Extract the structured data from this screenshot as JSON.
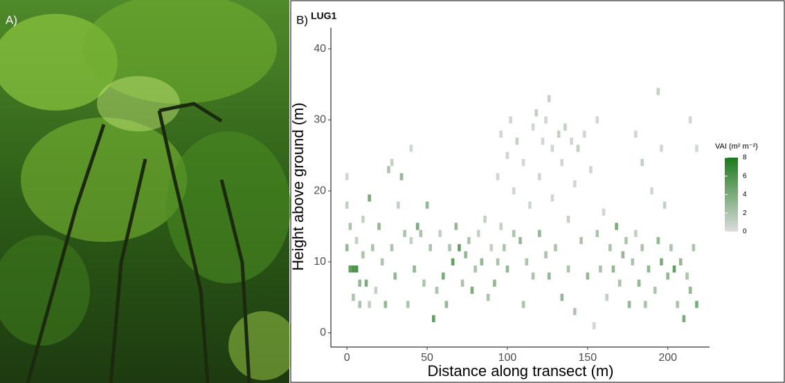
{
  "panel_labels": {
    "photo": "A)",
    "chart": "B)"
  },
  "chart_data": {
    "type": "heatmap",
    "title": "LUG1",
    "x_label": "Distance along transect (m)",
    "y_label": "Height above ground (m)",
    "xlim": [
      -10,
      226
    ],
    "ylim": [
      -2,
      43
    ],
    "xticks": [
      0,
      50,
      100,
      150,
      200
    ],
    "yticks": [
      0,
      10,
      20,
      30,
      40
    ],
    "legend_title": "VAI (m² m⁻²)",
    "legend_lim": [
      0,
      8
    ],
    "legend_ticks": [
      0,
      2,
      4,
      6,
      8
    ],
    "color_low": "#dcdcdc",
    "color_high": "#1b7a1b",
    "cell_width": 2,
    "cell_height": 1,
    "cells": [
      [
        0,
        12,
        3
      ],
      [
        0,
        18,
        1
      ],
      [
        0,
        22,
        0.5
      ],
      [
        2,
        9,
        5
      ],
      [
        2,
        15,
        2
      ],
      [
        4,
        9,
        6
      ],
      [
        4,
        5,
        2
      ],
      [
        6,
        9,
        6
      ],
      [
        6,
        13,
        1
      ],
      [
        8,
        7,
        3
      ],
      [
        8,
        4,
        2
      ],
      [
        10,
        16,
        1
      ],
      [
        10,
        11,
        2
      ],
      [
        12,
        7,
        4
      ],
      [
        14,
        4,
        1
      ],
      [
        14,
        19,
        4
      ],
      [
        16,
        12,
        2
      ],
      [
        18,
        6,
        1
      ],
      [
        20,
        15,
        3
      ],
      [
        22,
        10,
        2
      ],
      [
        24,
        4,
        3
      ],
      [
        26,
        23,
        2
      ],
      [
        28,
        24,
        1
      ],
      [
        28,
        12,
        2
      ],
      [
        30,
        8,
        3
      ],
      [
        32,
        18,
        1
      ],
      [
        34,
        22,
        3
      ],
      [
        36,
        14,
        2
      ],
      [
        38,
        4,
        2
      ],
      [
        40,
        13,
        1
      ],
      [
        40,
        26,
        0.5
      ],
      [
        42,
        9,
        3
      ],
      [
        44,
        15,
        4
      ],
      [
        46,
        14,
        2
      ],
      [
        48,
        7,
        2
      ],
      [
        50,
        18,
        3
      ],
      [
        52,
        12,
        2
      ],
      [
        54,
        2,
        5
      ],
      [
        56,
        6,
        2
      ],
      [
        58,
        14,
        1
      ],
      [
        60,
        8,
        4
      ],
      [
        62,
        4,
        3
      ],
      [
        64,
        12,
        2
      ],
      [
        66,
        10,
        5
      ],
      [
        68,
        15,
        3
      ],
      [
        70,
        12,
        5
      ],
      [
        72,
        7,
        2
      ],
      [
        74,
        11,
        3
      ],
      [
        76,
        13,
        2
      ],
      [
        78,
        6,
        4
      ],
      [
        80,
        9,
        2
      ],
      [
        82,
        14,
        1
      ],
      [
        84,
        10,
        3
      ],
      [
        86,
        16,
        1
      ],
      [
        88,
        5,
        2
      ],
      [
        90,
        12,
        1
      ],
      [
        92,
        7,
        3
      ],
      [
        94,
        22,
        0.5
      ],
      [
        94,
        10,
        2
      ],
      [
        96,
        28,
        0.5
      ],
      [
        96,
        15,
        1
      ],
      [
        98,
        12,
        2
      ],
      [
        100,
        9,
        3
      ],
      [
        100,
        25,
        0.5
      ],
      [
        102,
        30,
        0.5
      ],
      [
        104,
        20,
        0.5
      ],
      [
        104,
        14,
        2
      ],
      [
        106,
        27,
        1
      ],
      [
        108,
        13,
        3
      ],
      [
        110,
        24,
        0.5
      ],
      [
        110,
        4,
        2
      ],
      [
        112,
        10,
        2
      ],
      [
        114,
        18,
        0.5
      ],
      [
        116,
        29,
        0.5
      ],
      [
        116,
        8,
        2
      ],
      [
        118,
        31,
        1
      ],
      [
        120,
        14,
        3
      ],
      [
        120,
        22,
        0.5
      ],
      [
        122,
        27,
        0.5
      ],
      [
        124,
        30,
        0.5
      ],
      [
        124,
        11,
        2
      ],
      [
        126,
        33,
        1
      ],
      [
        126,
        8,
        3
      ],
      [
        128,
        26,
        0.5
      ],
      [
        128,
        19,
        0.5
      ],
      [
        130,
        12,
        2
      ],
      [
        132,
        28,
        1
      ],
      [
        134,
        5,
        3
      ],
      [
        134,
        24,
        0.5
      ],
      [
        136,
        29,
        1
      ],
      [
        138,
        16,
        1
      ],
      [
        138,
        9,
        2
      ],
      [
        140,
        27,
        0.5
      ],
      [
        142,
        21,
        0.5
      ],
      [
        142,
        3,
        2
      ],
      [
        144,
        26,
        1
      ],
      [
        146,
        13,
        2
      ],
      [
        148,
        28,
        0.5
      ],
      [
        150,
        8,
        3
      ],
      [
        152,
        23,
        0.5
      ],
      [
        154,
        1,
        0.5
      ],
      [
        156,
        14,
        2
      ],
      [
        156,
        30,
        0.5
      ],
      [
        158,
        9,
        2
      ],
      [
        160,
        17,
        0.5
      ],
      [
        162,
        5,
        1
      ],
      [
        164,
        12,
        2
      ],
      [
        166,
        9,
        3
      ],
      [
        168,
        15,
        4
      ],
      [
        170,
        7,
        2
      ],
      [
        172,
        11,
        3
      ],
      [
        174,
        13,
        2
      ],
      [
        176,
        4,
        3
      ],
      [
        178,
        10,
        2
      ],
      [
        180,
        28,
        0.5
      ],
      [
        180,
        14,
        1
      ],
      [
        182,
        7,
        3
      ],
      [
        184,
        24,
        1
      ],
      [
        184,
        12,
        2
      ],
      [
        186,
        4,
        2
      ],
      [
        188,
        9,
        3
      ],
      [
        190,
        20,
        0.5
      ],
      [
        192,
        6,
        2
      ],
      [
        194,
        34,
        1
      ],
      [
        194,
        13,
        3
      ],
      [
        196,
        26,
        0.5
      ],
      [
        196,
        10,
        4
      ],
      [
        198,
        18,
        1
      ],
      [
        200,
        8,
        3
      ],
      [
        202,
        12,
        2
      ],
      [
        204,
        9,
        5
      ],
      [
        206,
        4,
        2
      ],
      [
        208,
        10,
        3
      ],
      [
        210,
        2,
        4
      ],
      [
        212,
        8,
        2
      ],
      [
        214,
        30,
        0.5
      ],
      [
        214,
        6,
        3
      ],
      [
        216,
        12,
        2
      ],
      [
        218,
        4,
        4
      ],
      [
        218,
        26,
        0.5
      ]
    ]
  }
}
